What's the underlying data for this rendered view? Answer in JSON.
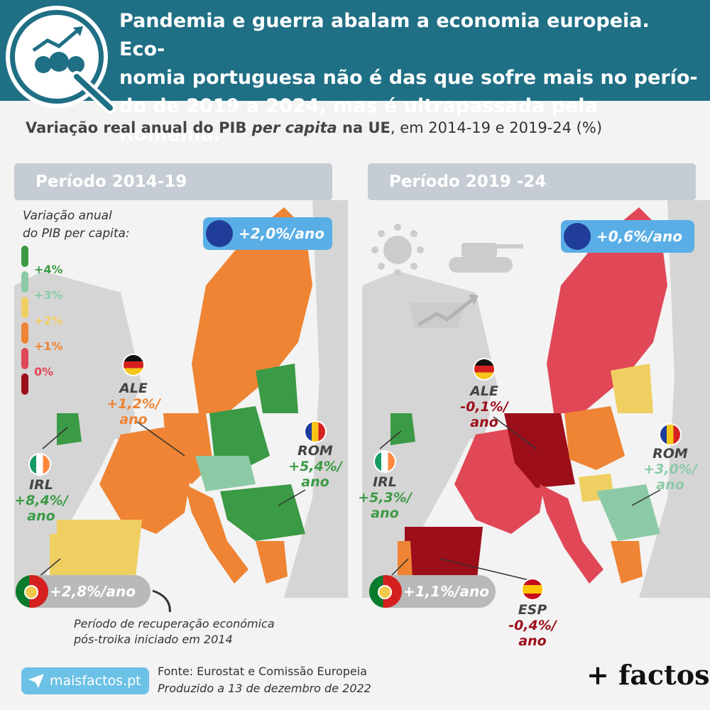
{
  "header": {
    "lines": [
      "Pandemia e guerra abalam a economia europeia. Eco-",
      "nomia portuguesa não é das que sofre mais no perío-",
      "do de 2019 a 2024, mas é ultrapassada pela Roménia."
    ]
  },
  "subtitle": {
    "bold_a": "Variação real anual do PIB ",
    "italic": "per capita",
    "bold_b": " na UE",
    "rest": ", em 2014-19 e 2019-24 (%)"
  },
  "legend": {
    "title_lines": [
      "Variação anual",
      "do PIB per capita:"
    ],
    "items": [
      {
        "label": "+4%",
        "color": "#3b9a45"
      },
      {
        "label": "+3%",
        "color": "#8ccaa6"
      },
      {
        "label": "+2%",
        "color": "#f0cf62"
      },
      {
        "label": "+1%",
        "color": "#ee8434"
      },
      {
        "label": "0%",
        "color": "#e04757"
      },
      {
        "label": "",
        "color": "#9c0e1a"
      }
    ]
  },
  "colors": {
    "g4": "#3b9a45",
    "g3": "#8ccaa6",
    "y2": "#f0cf62",
    "o1": "#ee8434",
    "r0": "#e04757",
    "d0": "#9c0e1a",
    "grey": "#d5d5d5"
  },
  "panels": [
    {
      "title": "Período 2014-19",
      "eu": "+2,0%/ano",
      "portugal": "+2,8%/ano",
      "germany": {
        "code": "ALE",
        "lines": [
          "+1,2%/",
          "ano"
        ],
        "color": "#ee8434"
      },
      "ireland": {
        "code": "IRL",
        "lines": [
          "+8,4%/",
          "ano"
        ],
        "color": "#3b9a45"
      },
      "romania": {
        "code": "ROM",
        "lines": [
          "+5,4%/",
          "ano"
        ],
        "color": "#3b9a45"
      },
      "regions": {
        "north": "#ee8434",
        "west": "#ee8434",
        "germany": "#ee8434",
        "iberia": "#f0cf62",
        "portugal": "#f0cf62",
        "poland": "#3b9a45",
        "baltic": "#3b9a45",
        "central": "#8ccaa6",
        "balkan": "#3b9a45",
        "italy": "#ee8434",
        "greece": "#ee8434",
        "ireland": "#3b9a45",
        "romania": "#3b9a45"
      }
    },
    {
      "title": "Período 2019 -24",
      "eu": "+0,6%/ano",
      "portugal": "+1,1%/ano",
      "germany": {
        "code": "ALE",
        "lines": [
          "-0,1%/",
          "ano"
        ],
        "color": "#9c0e1a"
      },
      "ireland": {
        "code": "IRL",
        "lines": [
          "+5,3%/",
          "ano"
        ],
        "color": "#3b9a45"
      },
      "romania": {
        "code": "ROM",
        "lines": [
          "+3,0%/",
          "ano"
        ],
        "color": "#8ccaa6"
      },
      "spain": {
        "code": "ESP",
        "lines": [
          "-0,4%/",
          "ano"
        ],
        "color": "#9c0e1a"
      },
      "regions": {
        "north": "#e04757",
        "west": "#e04757",
        "germany": "#9c0e1a",
        "iberia": "#9c0e1a",
        "portugal": "#ee8434",
        "poland": "#ee8434",
        "baltic": "#f0cf62",
        "central": "#f0cf62",
        "balkan": "#8ccaa6",
        "italy": "#e04757",
        "greece": "#ee8434",
        "ireland": "#3b9a45",
        "romania": "#8ccaa6"
      }
    }
  ],
  "note_lines": [
    "Período de recuperação económica",
    "pós-troika iniciado em 2014"
  ],
  "badge": "maisfactos.pt",
  "source_lines": [
    "Fonte: Eurostat e Comissão Europeia",
    "Produzido a 13 de dezembro de 2022"
  ],
  "brand": "+ factos",
  "icon_names": [
    "magnifier-coins-icon",
    "virus-icon",
    "tank-icon",
    "basket-icon",
    "eu-flag-icon"
  ]
}
